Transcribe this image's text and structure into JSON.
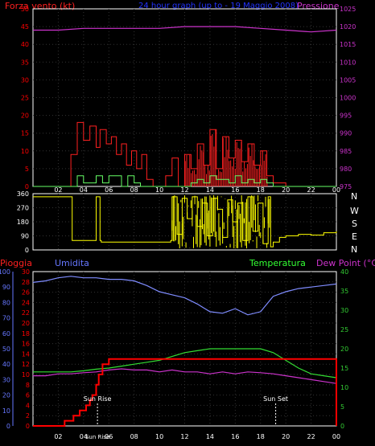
{
  "header": {
    "left_label": "Forza vento",
    "left_unit": "(kt)",
    "title": "24 hour graph (up to - 19 Maggio 2008)",
    "right_label": "Pressione"
  },
  "mid": {
    "compass": [
      "N",
      "W",
      "S",
      "E",
      "N"
    ]
  },
  "bottom_header": {
    "rain": "Pioggia",
    "hum": "Umidita",
    "temp": "Temperatura",
    "dew": "Dew Point (°C)"
  },
  "annotations": {
    "sunrise": "Sun Rise",
    "sunset": "Sun Set",
    "sunrise_tick": "Sun Rise"
  },
  "colors": {
    "red": "#ff0000",
    "pressure": "#cc33cc",
    "gust": "#ff2020",
    "avg_wind": "#66ff66",
    "direction": "#ffff00",
    "humidity": "#7f8cff",
    "temperature": "#33dd33",
    "dewpoint": "#cc33cc",
    "rain": "#ff0000",
    "axis_blue": "#6677ff",
    "axis_green": "#33cc33",
    "hum_label": "#6677ff",
    "temp_label": "#33ff33",
    "dew_label": "#cc33cc",
    "title_blue": "#2233ff"
  },
  "chart_data": [
    {
      "type": "line",
      "title": "24 hour graph (up to - 19 Maggio 2008)",
      "x_ticks": [
        "02",
        "04",
        "06",
        "08",
        "10",
        "12",
        "14",
        "16",
        "18",
        "20",
        "22",
        "00"
      ],
      "ylabel_left": "Forza vento (kt)",
      "ylabel_right": "Pressione",
      "ylim_left": [
        0,
        50
      ],
      "yticks_left": [
        0,
        5,
        10,
        15,
        20,
        25,
        30,
        35,
        40,
        45,
        50
      ],
      "ylim_right": [
        975,
        1025
      ],
      "yticks_right": [
        975,
        980,
        985,
        990,
        995,
        1000,
        1005,
        1010,
        1015,
        1020,
        1025
      ],
      "grid": true,
      "series": [
        {
          "name": "Pressione",
          "axis": "right",
          "x": [
            0,
            2,
            4,
            6,
            8,
            10,
            12,
            14,
            16,
            18,
            20,
            22,
            24
          ],
          "values": [
            1019,
            1019,
            1019.5,
            1019.5,
            1019.5,
            1019.5,
            1020,
            1020,
            1020,
            1019.5,
            1019,
            1018.5,
            1019
          ]
        },
        {
          "name": "Forza vento",
          "axis": "left",
          "x": [
            0,
            2.9,
            3,
            3.5,
            4,
            4.5,
            5,
            5.3,
            5.8,
            6.2,
            6.6,
            7,
            7.4,
            7.8,
            8.2,
            8.6,
            9,
            9.5,
            10,
            10.5,
            11,
            11.5,
            12,
            12.5,
            13,
            13.5,
            14,
            14.5,
            15,
            15.5,
            16,
            16.5,
            17,
            17.5,
            18,
            18.5,
            19,
            20,
            22,
            24
          ],
          "values": [
            0,
            0,
            9,
            18,
            13,
            17,
            11,
            16,
            12,
            14,
            9,
            12,
            6,
            10,
            5,
            9,
            2,
            0,
            0,
            3,
            8,
            0,
            9,
            5,
            12,
            6,
            16,
            5,
            14,
            8,
            13,
            7,
            12,
            6,
            10,
            3,
            1,
            0,
            0,
            0
          ]
        },
        {
          "name": "Vento medio",
          "axis": "left",
          "x": [
            0,
            3,
            3.5,
            4,
            4.5,
            5,
            5.5,
            6,
            6.5,
            7,
            7.5,
            8,
            8.5,
            9,
            12,
            12.5,
            13,
            13.5,
            14,
            14.5,
            15,
            15.5,
            16,
            16.5,
            17,
            17.5,
            18,
            18.5,
            19,
            24
          ],
          "values": [
            0,
            0,
            3,
            1,
            1,
            3,
            1,
            3,
            3,
            0,
            3,
            1,
            0,
            0,
            0,
            1,
            2,
            1,
            3,
            2,
            2,
            1,
            3,
            1,
            2,
            1,
            2,
            1,
            0,
            0
          ]
        }
      ]
    },
    {
      "type": "line",
      "title": "",
      "x_ticks": [
        "02",
        "04",
        "06",
        "08",
        "10",
        "12",
        "14",
        "16",
        "18",
        "20",
        "22",
        "00"
      ],
      "ylim": [
        0,
        360
      ],
      "yticks": [
        0,
        90,
        180,
        270,
        360
      ],
      "grid": true,
      "series": [
        {
          "name": "Direzione vento",
          "x": [
            0,
            3,
            3.1,
            4.9,
            5,
            5.1,
            5.3,
            5.4,
            10.9,
            11,
            11.4,
            11.8,
            12.2,
            12.6,
            13,
            13.4,
            13.8,
            14.2,
            14.6,
            15,
            15.4,
            15.8,
            16.2,
            16.6,
            17,
            17.4,
            17.8,
            18.2,
            18.6,
            18.8,
            19,
            19.5,
            20,
            21,
            22,
            23,
            24
          ],
          "values": [
            340,
            340,
            60,
            60,
            340,
            340,
            60,
            50,
            60,
            340,
            100,
            330,
            200,
            340,
            150,
            300,
            90,
            330,
            260,
            80,
            320,
            180,
            300,
            60,
            340,
            120,
            300,
            40,
            340,
            20,
            50,
            80,
            90,
            100,
            95,
            110,
            120
          ]
        }
      ]
    },
    {
      "type": "line",
      "title": "",
      "x_ticks": [
        "02",
        "04",
        "06",
        "08",
        "10",
        "12",
        "14",
        "16",
        "18",
        "20",
        "22",
        "00"
      ],
      "ylabel_left": "Pioggia / Umidita",
      "ylabel_right": "Temperatura / Dew Point (°C)",
      "ylim_left": [
        0,
        100
      ],
      "yticks_left": [
        0,
        10,
        20,
        30,
        40,
        50,
        60,
        70,
        80,
        90,
        100
      ],
      "ylim_rain": [
        0,
        30
      ],
      "yticks_rain": [
        0,
        2,
        4,
        6,
        8,
        10,
        12,
        14,
        16,
        18,
        20,
        22,
        24,
        26,
        28,
        30
      ],
      "ylim_right": [
        0,
        40
      ],
      "yticks_right": [
        0,
        5,
        10,
        15,
        20,
        25,
        30,
        35,
        40
      ],
      "grid": true,
      "series": [
        {
          "name": "Umidita",
          "axis": "left",
          "x": [
            0,
            1,
            2,
            3,
            4,
            5,
            6,
            7,
            8,
            9,
            10,
            11,
            12,
            13,
            14,
            15,
            16,
            17,
            18,
            19,
            20,
            21,
            22,
            23,
            24
          ],
          "values": [
            93,
            94,
            96,
            97,
            96,
            96,
            95,
            95,
            94,
            91,
            87,
            85,
            83,
            79,
            74,
            73,
            76,
            72,
            74,
            84,
            87,
            89,
            90,
            91,
            92
          ]
        },
        {
          "name": "Temperatura",
          "axis": "right",
          "x": [
            0,
            1,
            2,
            3,
            4,
            5,
            6,
            7,
            8,
            9,
            10,
            11,
            12,
            13,
            14,
            15,
            16,
            17,
            18,
            19,
            20,
            21,
            22,
            23,
            24
          ],
          "values": [
            14,
            14,
            14,
            14,
            14.3,
            14.7,
            15,
            15.5,
            16,
            16.5,
            17,
            18,
            19,
            19.5,
            20,
            20,
            20,
            20,
            20,
            19,
            17,
            15,
            13.5,
            13,
            12.5
          ]
        },
        {
          "name": "Dew Point",
          "axis": "right",
          "x": [
            0,
            1,
            2,
            3,
            4,
            5,
            6,
            7,
            8,
            9,
            10,
            11,
            12,
            13,
            14,
            15,
            16,
            17,
            18,
            19,
            20,
            21,
            22,
            23,
            24
          ],
          "values": [
            13,
            13,
            13.5,
            13.5,
            13.8,
            14,
            14.5,
            14.8,
            14.5,
            14.5,
            14,
            14.5,
            14,
            14,
            13.5,
            14,
            13.5,
            14,
            13.8,
            13.5,
            13,
            12.5,
            12,
            11.5,
            11
          ]
        },
        {
          "name": "Pioggia",
          "axis": "rain",
          "x": [
            0,
            2.4,
            2.5,
            3,
            3.2,
            3.5,
            3.7,
            4,
            4.2,
            4.5,
            4.7,
            5,
            5.2,
            5.5,
            6,
            6.5,
            23.9,
            24
          ],
          "values": [
            0,
            0,
            1,
            1,
            2,
            2,
            3,
            3,
            4,
            5,
            6,
            8,
            10,
            12,
            13,
            13,
            13,
            0
          ]
        }
      ],
      "annotations": [
        {
          "label": "Sun Rise",
          "x": 5.1
        },
        {
          "label": "Sun Set",
          "x": 19.2
        }
      ]
    }
  ]
}
